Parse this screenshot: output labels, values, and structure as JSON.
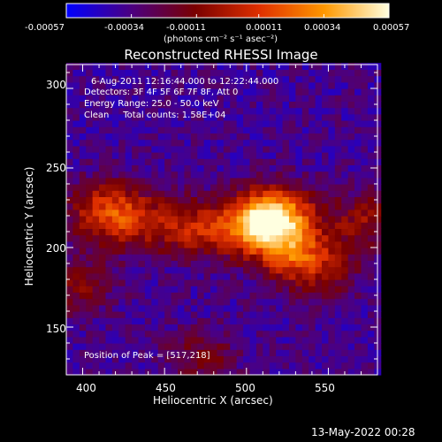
{
  "chart_data": {
    "type": "heatmap",
    "title": "Reconstructed RHESSI Image",
    "xlabel": "Heliocentric X (arcsec)",
    "ylabel": "Heliocentric Y (arcsec)",
    "xlim": [
      390,
      580
    ],
    "ylim": [
      120,
      315
    ],
    "x_ticks": [
      400,
      450,
      500,
      550
    ],
    "y_ticks": [
      150,
      200,
      250,
      300
    ],
    "colorbar": {
      "ticks": [
        "-0.00057",
        "-0.00034",
        "-0.00011",
        "0.00011",
        "0.00034",
        "0.00057"
      ],
      "tick_values": [
        -0.00057,
        -0.00034,
        -0.00011,
        0.00011,
        0.00034,
        0.00057
      ],
      "range": [
        -0.00057,
        0.00057
      ],
      "units": "(photons cm⁻² s⁻¹ asec⁻²)",
      "colormap": [
        "#0000ff",
        "#4b0082",
        "#7a0000",
        "#e03000",
        "#ff9800",
        "#ffffe0"
      ]
    },
    "peak": [
      517,
      218
    ],
    "sources": [
      {
        "x": 410,
        "y": 222,
        "intensity": 0.55
      },
      {
        "x": 430,
        "y": 215,
        "intensity": 0.45
      },
      {
        "x": 465,
        "y": 210,
        "intensity": 0.5
      },
      {
        "x": 500,
        "y": 212,
        "intensity": 0.7
      },
      {
        "x": 517,
        "y": 218,
        "intensity": 1.0
      },
      {
        "x": 525,
        "y": 195,
        "intensity": 0.6
      },
      {
        "x": 545,
        "y": 185,
        "intensity": 0.35
      },
      {
        "x": 570,
        "y": 215,
        "intensity": 0.4
      },
      {
        "x": 470,
        "y": 130,
        "intensity": 0.3
      },
      {
        "x": 395,
        "y": 175,
        "intensity": 0.35
      }
    ]
  },
  "annotations": {
    "time": "6-Aug-2011 12:16:44.000 to 12:22:44.000",
    "detectors": "Detectors: 3F 4F 5F 6F 7F 8F, Att 0",
    "energy": "Energy Range: 25.0 - 50.0 keV",
    "method": "Clean     Total counts: 1.58E+04",
    "peak_text": "Position of Peak = [517,218]"
  },
  "footer": {
    "date": "13-May-2022 00:28"
  }
}
